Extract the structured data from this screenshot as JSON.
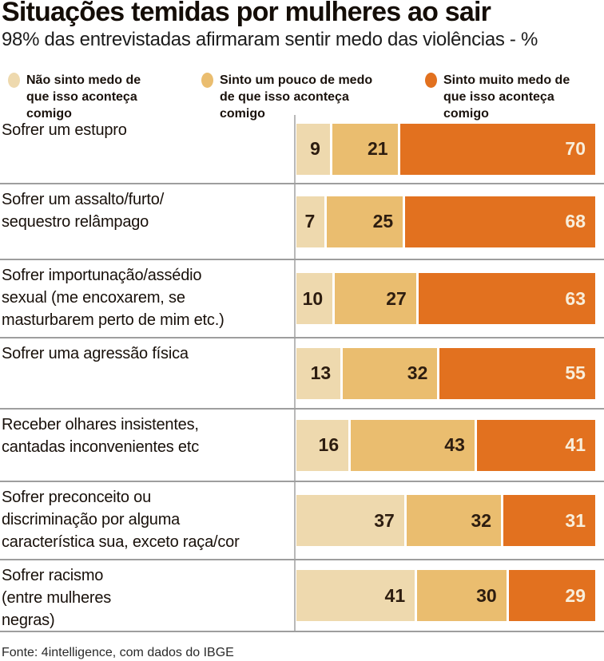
{
  "header": {
    "title": "Situações temidas por mulheres ao sair",
    "subtitle": "98% das entrevistadas afirmaram sentir medo das violências - %"
  },
  "legend": [
    {
      "label": "Não sinto medo de que isso aconteça comigo",
      "color": "#eed9ae"
    },
    {
      "label": "Sinto um pouco de medo de que isso aconteça comigo",
      "color": "#eabd6f"
    },
    {
      "label": "Sinto muito medo de que isso aconteça comigo",
      "color": "#e2711f"
    }
  ],
  "chart_data": {
    "type": "bar",
    "orientation": "horizontal",
    "stacked": true,
    "unit": "%",
    "xlim": [
      0,
      100
    ],
    "grid": false,
    "categories": [
      "Sofrer um estupro",
      "Sofrer um assalto/furto/\nsequestro relâmpago",
      "Sofrer importunação/assédio\nsexual (me encoxarem, se\nmasturbarem perto de mim etc.)",
      "Sofrer uma agressão física",
      "Receber olhares insistentes,\ncantadas inconvenientes etc",
      "Sofrer preconceito ou\ndiscriminação por alguma\ncaracterística sua, exceto raça/cor",
      "Sofrer racismo\n(entre mulheres\nnegras)"
    ],
    "series": [
      {
        "name": "Não sinto medo de que isso aconteça comigo",
        "color": "#eed9ae",
        "text_color": "#2d1d10",
        "values": [
          9,
          7,
          10,
          13,
          16,
          37,
          41
        ]
      },
      {
        "name": "Sinto um pouco de medo de que isso aconteça comigo",
        "color": "#eabd6f",
        "text_color": "#2d1d10",
        "values": [
          21,
          25,
          27,
          32,
          43,
          32,
          30
        ]
      },
      {
        "name": "Sinto muito medo de que isso aconteça comigo",
        "color": "#e2711f",
        "text_color": "#f8eedb",
        "values": [
          70,
          68,
          63,
          55,
          41,
          31,
          29
        ]
      }
    ]
  },
  "footer": {
    "source": "Fonte: 4intelligence, com dados do IBGE"
  }
}
